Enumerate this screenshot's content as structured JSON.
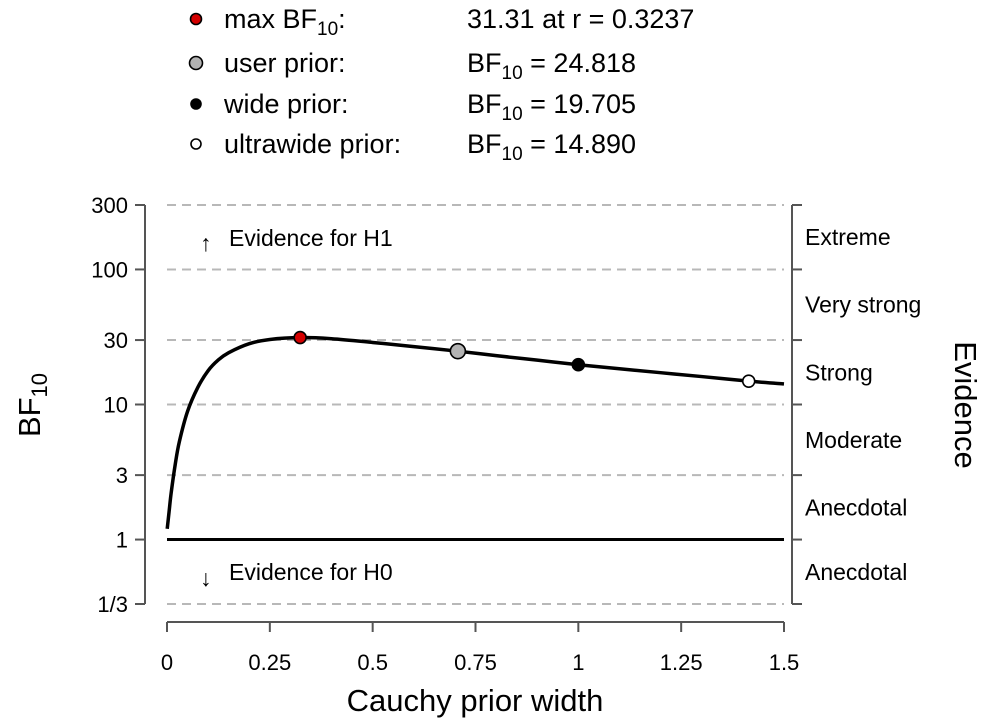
{
  "legend": [
    {
      "label": "max BF",
      "label_sub": "10",
      "label_suffix": ":",
      "value": "31.31 at r = 0.3237",
      "value_prefix": "",
      "value_sub": "",
      "value_suffix": "",
      "fill": "#d40000"
    },
    {
      "label": "user prior:",
      "label_sub": "",
      "label_suffix": "",
      "value": "",
      "value_prefix": "BF",
      "value_sub": "10",
      "value_suffix": " = 24.818",
      "fill": "#b3b3b3"
    },
    {
      "label": "wide prior:",
      "label_sub": "",
      "label_suffix": "",
      "value": "",
      "value_prefix": "BF",
      "value_sub": "10",
      "value_suffix": " = 19.705",
      "fill": "#000000"
    },
    {
      "label": "ultrawide prior:",
      "label_sub": "",
      "label_suffix": "",
      "value": "",
      "value_prefix": "BF",
      "value_sub": "10",
      "value_suffix": " = 14.890",
      "fill": "#ffffff"
    }
  ],
  "annotations": {
    "h1": "Evidence for H1",
    "h0": "Evidence for H0",
    "h1_arrow": "↑",
    "h0_arrow": "↓"
  },
  "evidence_categories": [
    {
      "label": "Extreme",
      "ymin": 100,
      "ymax": 300
    },
    {
      "label": "Very strong",
      "ymin": 30,
      "ymax": 100
    },
    {
      "label": "Strong",
      "ymin": 10,
      "ymax": 30
    },
    {
      "label": "Moderate",
      "ymin": 3,
      "ymax": 10
    },
    {
      "label": "Anecdotal",
      "ymin": 1,
      "ymax": 3
    },
    {
      "label": "Anecdotal",
      "ymin": 0.3333,
      "ymax": 1
    }
  ],
  "chart_data": {
    "type": "line",
    "title": "",
    "xlabel": "Cauchy prior width",
    "ylabel": "BF",
    "ylabel_sub": "10",
    "ylabel_right": "Evidence",
    "xlim": [
      0,
      1.5
    ],
    "ylim": [
      0.3333,
      300
    ],
    "yscale": "log",
    "grid": true,
    "x_ticks": [
      {
        "value": 0,
        "label": "0"
      },
      {
        "value": 0.25,
        "label": "0.25"
      },
      {
        "value": 0.5,
        "label": "0.5"
      },
      {
        "value": 0.75,
        "label": "0.75"
      },
      {
        "value": 1,
        "label": "1"
      },
      {
        "value": 1.25,
        "label": "1.25"
      },
      {
        "value": 1.5,
        "label": "1.5"
      }
    ],
    "y_ticks": [
      {
        "value": 300,
        "label": "300"
      },
      {
        "value": 100,
        "label": "100"
      },
      {
        "value": 30,
        "label": "30"
      },
      {
        "value": 10,
        "label": "10"
      },
      {
        "value": 3,
        "label": "3"
      },
      {
        "value": 1,
        "label": "1"
      },
      {
        "value": 0.3333,
        "label": "1/3"
      }
    ],
    "series": [
      {
        "x": [
          0.0005,
          0.005,
          0.01,
          0.02,
          0.03,
          0.05,
          0.075,
          0.1,
          0.125,
          0.15,
          0.2,
          0.25,
          0.3237,
          0.4,
          0.5,
          0.6,
          0.7071,
          0.8,
          0.9,
          1,
          1.1,
          1.2,
          1.3,
          1.4142,
          1.5
        ],
        "y": [
          1.2,
          1.6,
          2.2,
          3.6,
          5.3,
          8.9,
          13.4,
          17.8,
          21.4,
          24.2,
          28.2,
          30.3,
          31.31,
          30.7,
          28.8,
          26.8,
          24.818,
          23.0,
          21.3,
          19.705,
          18.4,
          17.2,
          16.1,
          14.89,
          14.2
        ]
      }
    ],
    "points": [
      {
        "name": "max-bf-point",
        "x": 0.3237,
        "y": 31.31,
        "fill": "#d40000"
      },
      {
        "name": "user-prior-point",
        "x": 0.7071,
        "y": 24.818,
        "fill": "#b3b3b3"
      },
      {
        "name": "wide-prior-point",
        "x": 1,
        "y": 19.705,
        "fill": "#000000"
      },
      {
        "name": "ultrawide-prior-point",
        "x": 1.4142,
        "y": 14.89,
        "fill": "#ffffff"
      }
    ],
    "reference_line": {
      "y": 1
    }
  }
}
